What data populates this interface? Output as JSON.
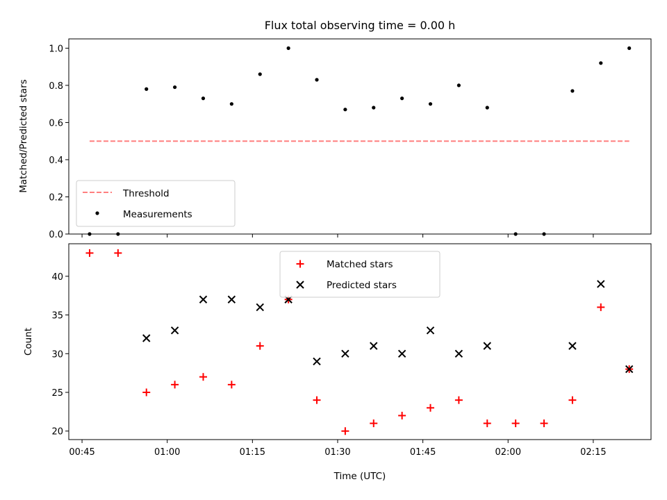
{
  "chart_data": [
    {
      "type": "scatter",
      "title": "Flux total observing time = 0.00 h",
      "xlabel": "",
      "ylabel": "Matched/Predicted stars",
      "xlim": [
        "00:42:40",
        "02:25:10"
      ],
      "ylim": [
        0,
        1.05
      ],
      "yticks": [
        "0.0",
        "0.2",
        "0.4",
        "0.6",
        "0.8",
        "1.0"
      ],
      "grid": false,
      "legend": "lower-left",
      "x": [
        "00:46:20",
        "00:51:20",
        "00:56:20",
        "01:01:20",
        "01:06:20",
        "01:11:20",
        "01:16:20",
        "01:21:20",
        "01:26:20",
        "01:31:20",
        "01:36:20",
        "01:41:20",
        "01:46:20",
        "01:51:20",
        "01:56:20",
        "02:01:20",
        "02:06:20",
        "02:11:20",
        "02:16:20",
        "02:21:20"
      ],
      "series": [
        {
          "name": "Threshold",
          "style": "dashed-line",
          "color": "#ff7f7f",
          "x": [
            "00:46:20",
            "02:21:20"
          ],
          "values": [
            0.5,
            0.5
          ]
        },
        {
          "name": "Measurements",
          "style": "dot",
          "color": "#000000",
          "values": [
            0.0,
            0.0,
            0.78,
            0.79,
            0.73,
            0.7,
            0.86,
            1.0,
            0.83,
            0.67,
            0.68,
            0.73,
            0.7,
            0.8,
            0.68,
            0.0,
            0.0,
            0.77,
            0.92,
            1.0
          ]
        }
      ]
    },
    {
      "type": "scatter",
      "title": "",
      "xlabel": "Time (UTC)",
      "ylabel": "Count",
      "xlim": [
        "00:42:40",
        "02:25:10"
      ],
      "ylim": [
        18.9,
        44.2
      ],
      "xticks": [
        "00:45",
        "01:00",
        "01:15",
        "01:30",
        "01:45",
        "02:00",
        "02:15"
      ],
      "yticks": [
        "20",
        "25",
        "30",
        "35",
        "40"
      ],
      "grid": false,
      "legend": "upper-center",
      "x": [
        "00:46:20",
        "00:51:20",
        "00:56:20",
        "01:01:20",
        "01:06:20",
        "01:11:20",
        "01:16:20",
        "01:21:20",
        "01:26:20",
        "01:31:20",
        "01:36:20",
        "01:41:20",
        "01:46:20",
        "01:51:20",
        "01:56:20",
        "02:01:20",
        "02:06:20",
        "02:11:20",
        "02:16:20",
        "02:21:20"
      ],
      "series": [
        {
          "name": "Matched stars",
          "marker": "plus",
          "color": "#ff0000",
          "values": [
            43,
            43,
            25,
            26,
            27,
            26,
            31,
            37,
            24,
            20,
            21,
            22,
            23,
            24,
            21,
            21,
            21,
            24,
            36,
            28
          ]
        },
        {
          "name": "Predicted stars",
          "marker": "x",
          "color": "#000000",
          "values": [
            null,
            null,
            32,
            33,
            37,
            37,
            36,
            37,
            29,
            30,
            31,
            30,
            33,
            30,
            31,
            null,
            null,
            31,
            39,
            28
          ]
        }
      ]
    }
  ]
}
